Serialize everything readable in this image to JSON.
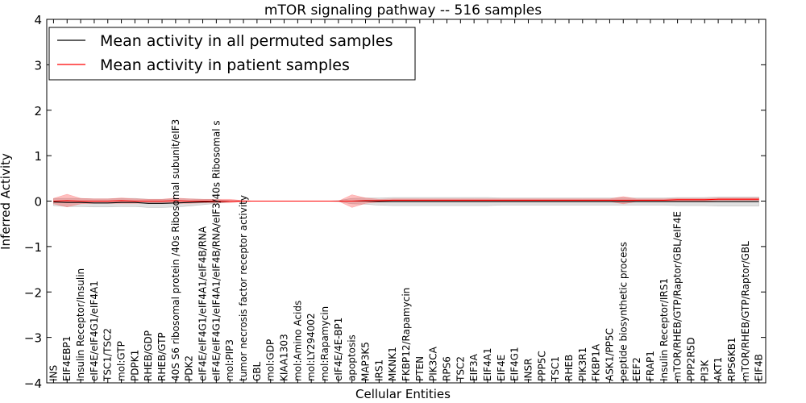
{
  "chart_data": {
    "type": "line",
    "title": "mTOR signaling pathway -- 516 samples",
    "xlabel": "Cellular Entities",
    "ylabel": "Inferred Activity",
    "ylim": [
      -4,
      4
    ],
    "yticks": [
      {
        "value": 4,
        "label": "4"
      },
      {
        "value": 3,
        "label": "3"
      },
      {
        "value": 2,
        "label": "2"
      },
      {
        "value": 1,
        "label": "1"
      },
      {
        "value": 0,
        "label": "0"
      },
      {
        "value": -1,
        "label": "−1"
      },
      {
        "value": -2,
        "label": "−2"
      },
      {
        "value": -3,
        "label": "−3"
      },
      {
        "value": -4,
        "label": "−4"
      }
    ],
    "legend_position": "top-left",
    "categories": [
      "INS",
      "EIF4EBP1",
      "Insulin Receptor/Insulin",
      "eIF4E/eIF4G1/eIF4A1",
      "TSC1/TSC2",
      "mol:GTP",
      "PDPK1",
      "RHEB/GDP",
      "RHEB/GTP",
      "40S S6 ribosomal protein /40s Ribosomal subunit/eIF3",
      "PDK2",
      "eIF4E/eIF4G1/eIF4A1/eIF4B/RNA",
      "eIF4E/eIF4G1/eIF4A1/eIF4B/RNA/eIF3/40s Ribosomal s",
      "mol:PIP3",
      "tumor necrosis factor receptor activity",
      "GBL",
      "mol:GDP",
      "KIAA1303",
      "mol:Amino Acids",
      "mol:LY294002",
      "mol:Rapamycin",
      "eIF4E/4E-BP1",
      "apoptosis",
      "MAP3K5",
      "IRS1",
      "MKNK1",
      "FKBP12/Rapamycin",
      "PTEN",
      "PIK3CA",
      "RPS6",
      "TSC2",
      "EIF3A",
      "EIF4A1",
      "EIF4E",
      "EIF4G1",
      "INSR",
      "PPP5C",
      "TSC1",
      "RHEB",
      "PIK3R1",
      "FKBP1A",
      "ASK1/PP5C",
      "peptide biosynthetic process",
      "EEF2",
      "FRAP1",
      "Insulin Receptor/IRS1",
      "mTOR/RHEB/GTP/Raptor/GBL/eIF4E",
      "PPP2R5D",
      "PI3K",
      "AKT1",
      "RPS6KB1",
      "mTOR/RHEB/GTP/Raptor/GBL",
      "EIF4B"
    ],
    "series": [
      {
        "name": "Mean activity in all permuted samples",
        "color": "#000000",
        "values": [
          -0.02,
          -0.03,
          -0.03,
          -0.04,
          -0.04,
          -0.03,
          -0.03,
          -0.05,
          -0.05,
          -0.04,
          -0.03,
          -0.02,
          -0.01,
          0,
          0,
          0,
          0,
          0,
          0,
          0,
          0,
          0,
          0,
          0,
          -0.01,
          -0.01,
          -0.01,
          -0.01,
          -0.01,
          -0.01,
          -0.01,
          -0.01,
          -0.01,
          -0.01,
          -0.01,
          -0.01,
          -0.01,
          -0.01,
          -0.01,
          -0.01,
          -0.01,
          -0.01,
          -0.01,
          -0.01,
          -0.01,
          -0.01,
          -0.01,
          -0.01,
          -0.01,
          -0.01,
          -0.01,
          -0.01,
          -0.01
        ],
        "band": [
          0.08,
          0.09,
          0.09,
          0.09,
          0.09,
          0.09,
          0.09,
          0.09,
          0.09,
          0.09,
          0.08,
          0.06,
          0.04,
          0.01,
          0.01,
          0,
          0,
          0,
          0,
          0,
          0,
          0.01,
          0.06,
          0.07,
          0.08,
          0.09,
          0.09,
          0.09,
          0.09,
          0.09,
          0.09,
          0.09,
          0.09,
          0.08,
          0.08,
          0.08,
          0.08,
          0.08,
          0.08,
          0.08,
          0.08,
          0.08,
          0.08,
          0.08,
          0.08,
          0.08,
          0.09,
          0.09,
          0.09,
          0.1,
          0.1,
          0.1,
          0.1
        ]
      },
      {
        "name": "Mean activity in patient samples",
        "color": "#ff0000",
        "values": [
          0,
          0.01,
          0,
          0,
          0,
          0.01,
          0,
          0,
          0,
          0.01,
          0,
          0,
          0,
          0,
          0,
          0,
          0,
          0,
          0,
          0,
          0,
          0,
          0,
          0.01,
          0.01,
          0.02,
          0.02,
          0.02,
          0.02,
          0.02,
          0.02,
          0.02,
          0.02,
          0.02,
          0.02,
          0.02,
          0.02,
          0.02,
          0.02,
          0.02,
          0.02,
          0.02,
          0.02,
          0.02,
          0.02,
          0.02,
          0.03,
          0.03,
          0.03,
          0.04,
          0.04,
          0.04,
          0.04
        ],
        "band": [
          0.06,
          0.14,
          0.06,
          0.05,
          0.05,
          0.06,
          0.05,
          0.04,
          0.04,
          0.06,
          0.05,
          0.04,
          0.04,
          0.04,
          0.01,
          0,
          0,
          0,
          0,
          0,
          0,
          0,
          0.14,
          0.06,
          0.03,
          0.03,
          0.03,
          0.03,
          0.03,
          0.03,
          0.03,
          0.03,
          0.03,
          0.03,
          0.03,
          0.03,
          0.03,
          0.03,
          0.03,
          0.03,
          0.03,
          0.03,
          0.08,
          0.03,
          0.03,
          0.03,
          0.03,
          0.03,
          0.03,
          0.03,
          0.03,
          0.03,
          0.03
        ]
      }
    ]
  }
}
